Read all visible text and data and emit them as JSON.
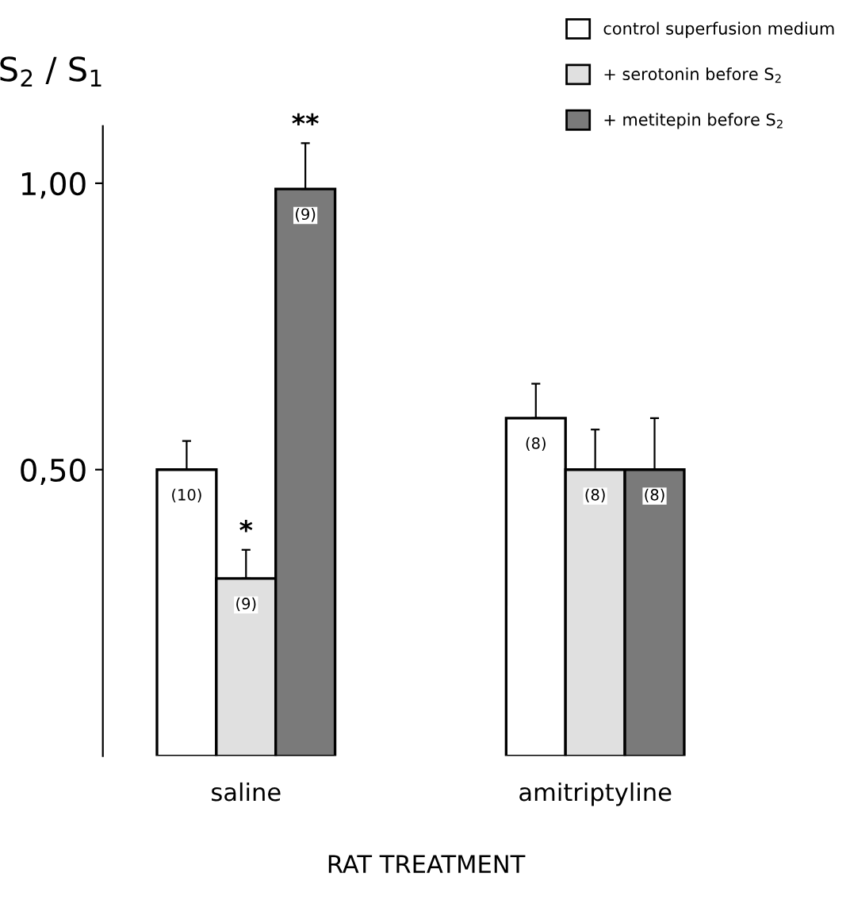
{
  "chart_data": {
    "type": "bar",
    "ylabel": "S$_{2}$ / S$_{1}$",
    "xlabel": "RAT TREATMENT",
    "categories": [
      "saline",
      "amitriptyline"
    ],
    "series": [
      {
        "name": "control superfusion medium",
        "color": "#ffffff",
        "values": [
          0.5,
          0.59
        ],
        "errors": [
          0.05,
          0.06
        ]
      },
      {
        "name": "+ serotonin before S$_{2}$",
        "color": "#e0e0e0",
        "values": [
          0.31,
          0.5
        ],
        "errors": [
          0.05,
          0.07
        ]
      },
      {
        "name": "+ metitepin before S$_{2}$",
        "color": "#7a7a7a",
        "values": [
          0.99,
          0.5
        ],
        "errors": [
          0.08,
          0.09
        ]
      }
    ],
    "ylim": [
      0,
      1.1
    ],
    "yticks": [
      {
        "value": 0.5,
        "label": "0,50"
      },
      {
        "value": 1.0,
        "label": "1,00"
      }
    ],
    "grid": false,
    "legend": "top right",
    "annotations": [
      "(10)",
      "(9)",
      "(9)",
      "(8)",
      "(8)",
      "(8)",
      "*",
      "**"
    ]
  }
}
